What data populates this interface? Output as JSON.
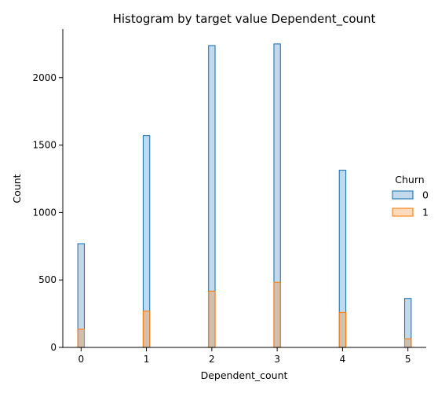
{
  "chart_data": {
    "type": "bar",
    "title": "Histogram by target value Dependent_count",
    "xlabel": "Dependent_count",
    "ylabel": "Count",
    "x_ticks": [
      0,
      1,
      2,
      3,
      4,
      5
    ],
    "y_ticks": [
      0,
      500,
      1000,
      1500,
      2000
    ],
    "categories": [
      0,
      1,
      2,
      3,
      4,
      5
    ],
    "ylim": [
      0,
      2360
    ],
    "xlim": [
      -0.28,
      5.28
    ],
    "bar_width": 0.1,
    "grid": false,
    "legend": {
      "title": "Churn",
      "placement": "right",
      "entries": [
        "0",
        "1"
      ]
    },
    "series": [
      {
        "name": "0",
        "values": [
          769,
          1570,
          2238,
          2250,
          1314,
          363
        ],
        "color": "#1f77b4"
      },
      {
        "name": "1",
        "values": [
          135,
          269,
          417,
          482,
          260,
          64
        ],
        "color": "#ff7f0e"
      }
    ]
  }
}
